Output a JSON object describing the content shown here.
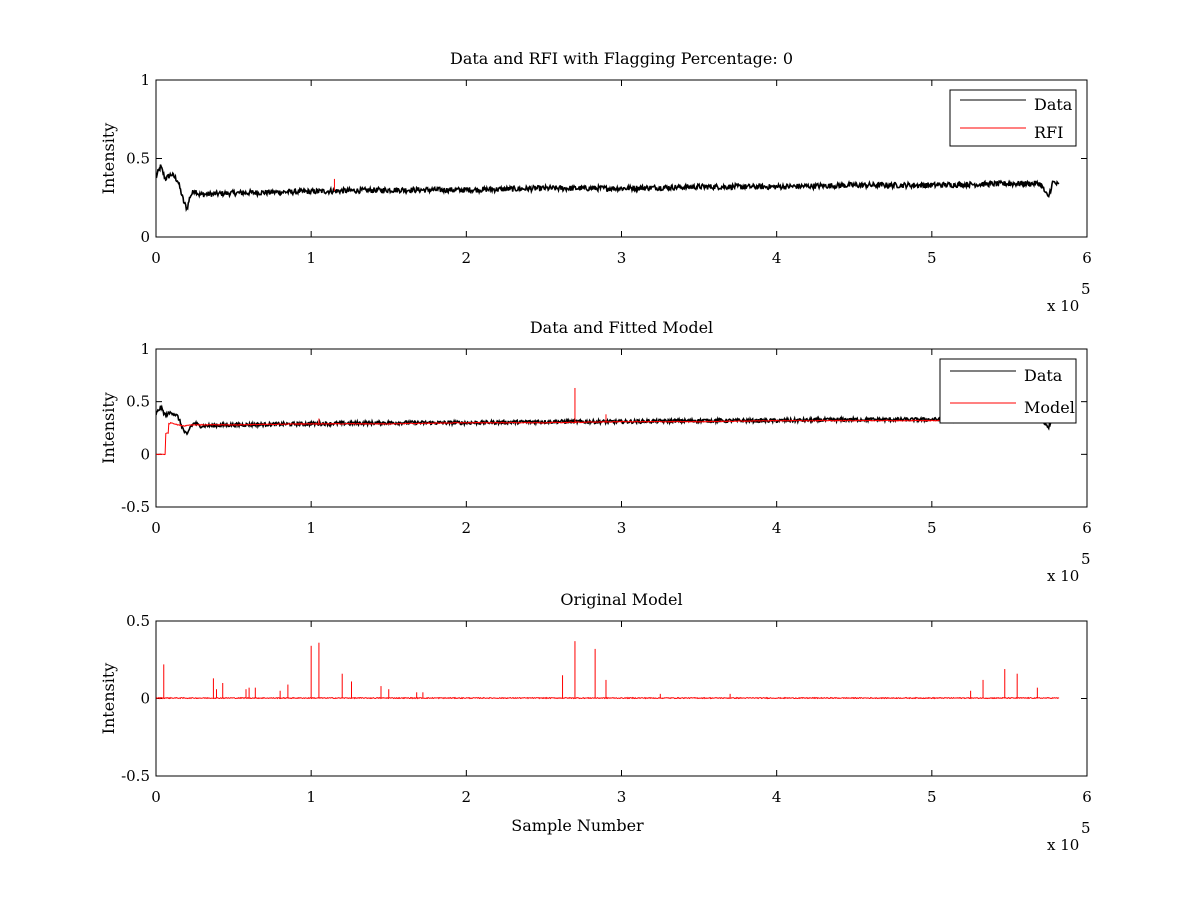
{
  "colors": {
    "data": "#000000",
    "rfi": "#ff0000"
  },
  "chart_data": [
    {
      "type": "line",
      "title": "Data and RFI with Flagging Percentage: 0",
      "xlabel": "",
      "ylabel": "Intensity",
      "xlim": [
        0,
        6
      ],
      "ylim": [
        0,
        1
      ],
      "xticks": [
        "0",
        "1",
        "2",
        "3",
        "4",
        "5",
        "6"
      ],
      "yticks": [
        "0",
        "0.5",
        "1"
      ],
      "x_exponent": "x 10",
      "x_exponent_power": "5",
      "legend": {
        "position": "top-right",
        "entries": [
          "Data",
          "RFI"
        ]
      },
      "series": [
        {
          "name": "Data",
          "color": "#000000",
          "x": [
            0,
            0.03,
            0.06,
            0.1,
            0.14,
            0.18,
            0.2,
            0.22,
            0.25,
            0.28,
            0.5,
            1,
            1.5,
            2,
            2.5,
            3,
            3.5,
            4,
            4.5,
            5,
            5.5,
            5.7,
            5.75,
            5.78,
            5.82
          ],
          "y": [
            0.38,
            0.45,
            0.37,
            0.4,
            0.36,
            0.22,
            0.18,
            0.26,
            0.3,
            0.27,
            0.28,
            0.29,
            0.3,
            0.3,
            0.31,
            0.31,
            0.32,
            0.32,
            0.33,
            0.33,
            0.34,
            0.34,
            0.25,
            0.35,
            0.33
          ]
        },
        {
          "name": "RFI",
          "color": "#ff0000",
          "spikes": [
            {
              "x": 1.15,
              "y": 0.37
            }
          ]
        }
      ]
    },
    {
      "type": "line",
      "title": "Data and Fitted Model",
      "xlabel": "",
      "ylabel": "Intensity",
      "xlim": [
        0,
        6
      ],
      "ylim": [
        -0.5,
        1
      ],
      "xticks": [
        "0",
        "1",
        "2",
        "3",
        "4",
        "5",
        "6"
      ],
      "yticks": [
        "-0.5",
        "0",
        "0.5",
        "1"
      ],
      "x_exponent": "x 10",
      "x_exponent_power": "5",
      "legend": {
        "position": "top-right",
        "entries": [
          "Data",
          "Model"
        ]
      },
      "series": [
        {
          "name": "Data",
          "color": "#000000",
          "x": [
            0,
            0.03,
            0.06,
            0.1,
            0.14,
            0.18,
            0.2,
            0.22,
            0.25,
            0.28,
            0.5,
            1,
            1.5,
            2,
            2.5,
            3,
            3.5,
            4,
            4.5,
            5,
            5.5,
            5.7,
            5.75,
            5.78,
            5.82
          ],
          "y": [
            0.38,
            0.45,
            0.37,
            0.4,
            0.36,
            0.22,
            0.18,
            0.26,
            0.3,
            0.27,
            0.28,
            0.29,
            0.3,
            0.3,
            0.31,
            0.31,
            0.32,
            0.32,
            0.33,
            0.33,
            0.34,
            0.34,
            0.25,
            0.35,
            0.33
          ]
        },
        {
          "name": "Model",
          "color": "#ff0000",
          "x": [
            0,
            0.06,
            0.06,
            0.08,
            0.08,
            0.1,
            0.14,
            0.18,
            0.22,
            0.28,
            0.5,
            1,
            1.5,
            2,
            2.5,
            3,
            3.5,
            4,
            4.5,
            5,
            5.5
          ],
          "y": [
            0,
            0,
            0.2,
            0.2,
            0.29,
            0.3,
            0.28,
            0.27,
            0.28,
            0.28,
            0.28,
            0.29,
            0.29,
            0.3,
            0.3,
            0.31,
            0.31,
            0.32,
            0.32,
            0.32,
            0.33
          ],
          "spikes": [
            {
              "x": 2.7,
              "y": 0.63
            },
            {
              "x": 2.9,
              "y": 0.38
            },
            {
              "x": 1.05,
              "y": 0.34
            }
          ]
        }
      ]
    },
    {
      "type": "line",
      "title": "Original Model",
      "xlabel": "Sample Number",
      "ylabel": "Intensity",
      "xlim": [
        0,
        6
      ],
      "ylim": [
        -0.5,
        0.5
      ],
      "xticks": [
        "0",
        "1",
        "2",
        "3",
        "4",
        "5",
        "6"
      ],
      "yticks": [
        "-0.5",
        "0",
        "0.5"
      ],
      "x_exponent": "x 10",
      "x_exponent_power": "5",
      "series": [
        {
          "name": "",
          "color": "#ff0000",
          "baseline": 0,
          "x_end": 5.82,
          "spikes": [
            {
              "x": 0.05,
              "y": 0.22
            },
            {
              "x": 0.37,
              "y": 0.13
            },
            {
              "x": 0.39,
              "y": 0.06
            },
            {
              "x": 0.43,
              "y": 0.1
            },
            {
              "x": 0.58,
              "y": 0.06
            },
            {
              "x": 0.6,
              "y": 0.07
            },
            {
              "x": 0.64,
              "y": 0.07
            },
            {
              "x": 0.8,
              "y": 0.05
            },
            {
              "x": 0.85,
              "y": 0.09
            },
            {
              "x": 1.0,
              "y": 0.34
            },
            {
              "x": 1.05,
              "y": 0.36
            },
            {
              "x": 1.2,
              "y": 0.16
            },
            {
              "x": 1.26,
              "y": 0.11
            },
            {
              "x": 1.45,
              "y": 0.08
            },
            {
              "x": 1.5,
              "y": 0.06
            },
            {
              "x": 1.68,
              "y": 0.04
            },
            {
              "x": 1.72,
              "y": 0.04
            },
            {
              "x": 2.62,
              "y": 0.15
            },
            {
              "x": 2.7,
              "y": 0.37
            },
            {
              "x": 2.83,
              "y": 0.32
            },
            {
              "x": 2.9,
              "y": 0.12
            },
            {
              "x": 3.25,
              "y": 0.03
            },
            {
              "x": 3.7,
              "y": 0.03
            },
            {
              "x": 5.25,
              "y": 0.05
            },
            {
              "x": 5.33,
              "y": 0.12
            },
            {
              "x": 5.47,
              "y": 0.19
            },
            {
              "x": 5.55,
              "y": 0.16
            },
            {
              "x": 5.68,
              "y": 0.07
            }
          ]
        }
      ]
    }
  ]
}
